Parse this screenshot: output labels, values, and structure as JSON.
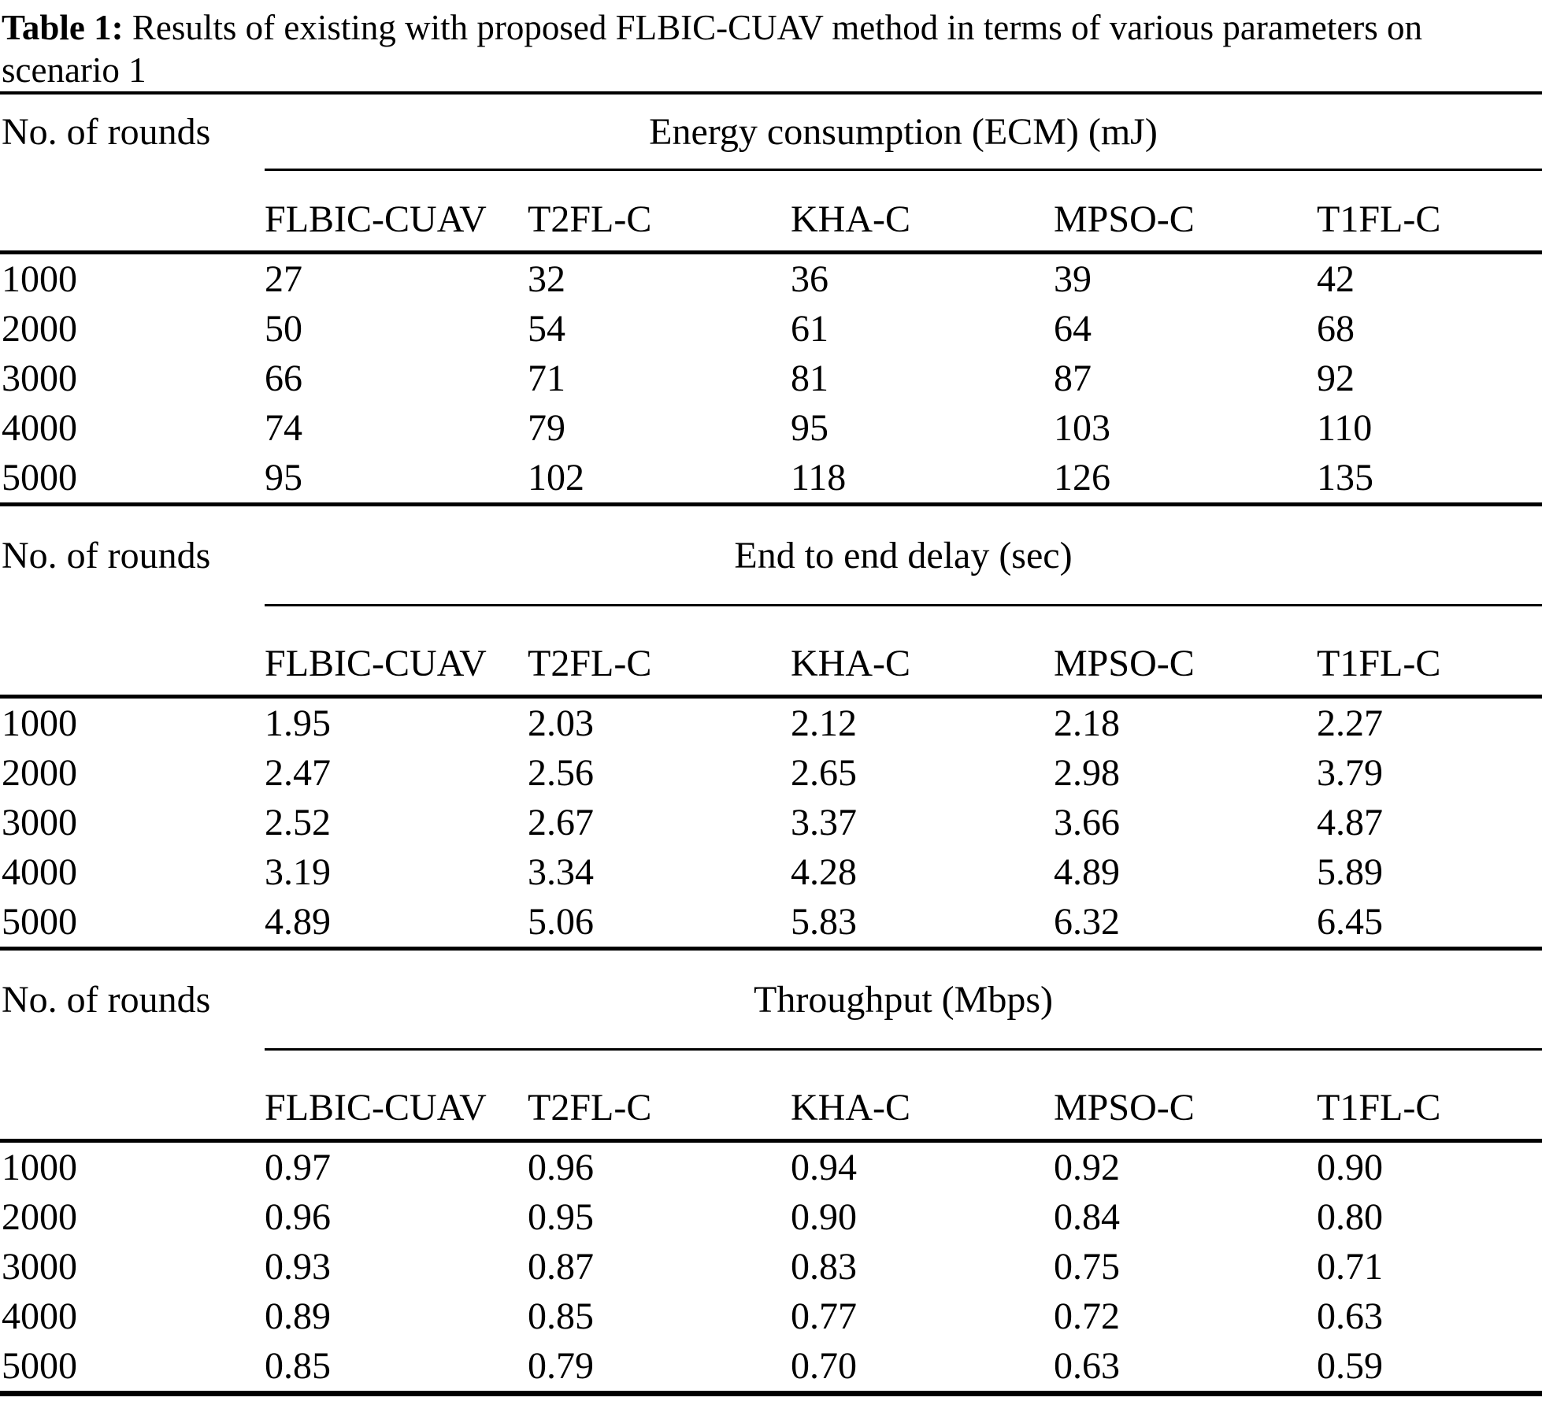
{
  "caption": {
    "label": "Table 1:",
    "text": " Results of existing with proposed FLBIC-CUAV method in terms of various parameters on scenario 1"
  },
  "row_axis_label": "No. of rounds",
  "rounds": [
    "1000",
    "2000",
    "3000",
    "4000",
    "5000"
  ],
  "methods": [
    "FLBIC-CUAV",
    "T2FL-C",
    "KHA-C",
    "MPSO-C",
    "T1FL-C"
  ],
  "sections": [
    {
      "metric": "Energy consumption (ECM) (mJ)",
      "rows": [
        [
          "27",
          "32",
          "36",
          "39",
          "42"
        ],
        [
          "50",
          "54",
          "61",
          "64",
          "68"
        ],
        [
          "66",
          "71",
          "81",
          "87",
          "92"
        ],
        [
          "74",
          "79",
          "95",
          "103",
          "110"
        ],
        [
          "95",
          "102",
          "118",
          "126",
          "135"
        ]
      ]
    },
    {
      "metric": "End to end delay (sec)",
      "rows": [
        [
          "1.95",
          "2.03",
          "2.12",
          "2.18",
          "2.27"
        ],
        [
          "2.47",
          "2.56",
          "2.65",
          "2.98",
          "3.79"
        ],
        [
          "2.52",
          "2.67",
          "3.37",
          "3.66",
          "4.87"
        ],
        [
          "3.19",
          "3.34",
          "4.28",
          "4.89",
          "5.89"
        ],
        [
          "4.89",
          "5.06",
          "5.83",
          "6.32",
          "6.45"
        ]
      ]
    },
    {
      "metric": "Throughput (Mbps)",
      "rows": [
        [
          "0.97",
          "0.96",
          "0.94",
          "0.92",
          "0.90"
        ],
        [
          "0.96",
          "0.95",
          "0.90",
          "0.84",
          "0.80"
        ],
        [
          "0.93",
          "0.87",
          "0.83",
          "0.75",
          "0.71"
        ],
        [
          "0.89",
          "0.85",
          "0.77",
          "0.72",
          "0.63"
        ],
        [
          "0.85",
          "0.79",
          "0.70",
          "0.63",
          "0.59"
        ]
      ]
    }
  ],
  "chart_data": [
    {
      "type": "table",
      "title": "Energy consumption (ECM) (mJ)",
      "xlabel": "No. of rounds",
      "categories": [
        1000,
        2000,
        3000,
        4000,
        5000
      ],
      "series": [
        {
          "name": "FLBIC-CUAV",
          "values": [
            27,
            50,
            66,
            74,
            95
          ]
        },
        {
          "name": "T2FL-C",
          "values": [
            32,
            54,
            71,
            79,
            102
          ]
        },
        {
          "name": "KHA-C",
          "values": [
            36,
            61,
            81,
            95,
            118
          ]
        },
        {
          "name": "MPSO-C",
          "values": [
            39,
            64,
            87,
            103,
            126
          ]
        },
        {
          "name": "T1FL-C",
          "values": [
            42,
            68,
            92,
            110,
            135
          ]
        }
      ]
    },
    {
      "type": "table",
      "title": "End to end delay (sec)",
      "xlabel": "No. of rounds",
      "categories": [
        1000,
        2000,
        3000,
        4000,
        5000
      ],
      "series": [
        {
          "name": "FLBIC-CUAV",
          "values": [
            1.95,
            2.47,
            2.52,
            3.19,
            4.89
          ]
        },
        {
          "name": "T2FL-C",
          "values": [
            2.03,
            2.56,
            2.67,
            3.34,
            5.06
          ]
        },
        {
          "name": "KHA-C",
          "values": [
            2.12,
            2.65,
            3.37,
            4.28,
            5.83
          ]
        },
        {
          "name": "MPSO-C",
          "values": [
            2.18,
            2.98,
            3.66,
            4.89,
            6.32
          ]
        },
        {
          "name": "T1FL-C",
          "values": [
            2.27,
            3.79,
            4.87,
            5.89,
            6.45
          ]
        }
      ]
    },
    {
      "type": "table",
      "title": "Throughput (Mbps)",
      "xlabel": "No. of rounds",
      "categories": [
        1000,
        2000,
        3000,
        4000,
        5000
      ],
      "series": [
        {
          "name": "FLBIC-CUAV",
          "values": [
            0.97,
            0.96,
            0.93,
            0.89,
            0.85
          ]
        },
        {
          "name": "T2FL-C",
          "values": [
            0.96,
            0.95,
            0.87,
            0.85,
            0.79
          ]
        },
        {
          "name": "KHA-C",
          "values": [
            0.94,
            0.9,
            0.83,
            0.77,
            0.7
          ]
        },
        {
          "name": "MPSO-C",
          "values": [
            0.92,
            0.84,
            0.75,
            0.72,
            0.63
          ]
        },
        {
          "name": "T1FL-C",
          "values": [
            0.9,
            0.8,
            0.71,
            0.63,
            0.59
          ]
        }
      ]
    }
  ]
}
